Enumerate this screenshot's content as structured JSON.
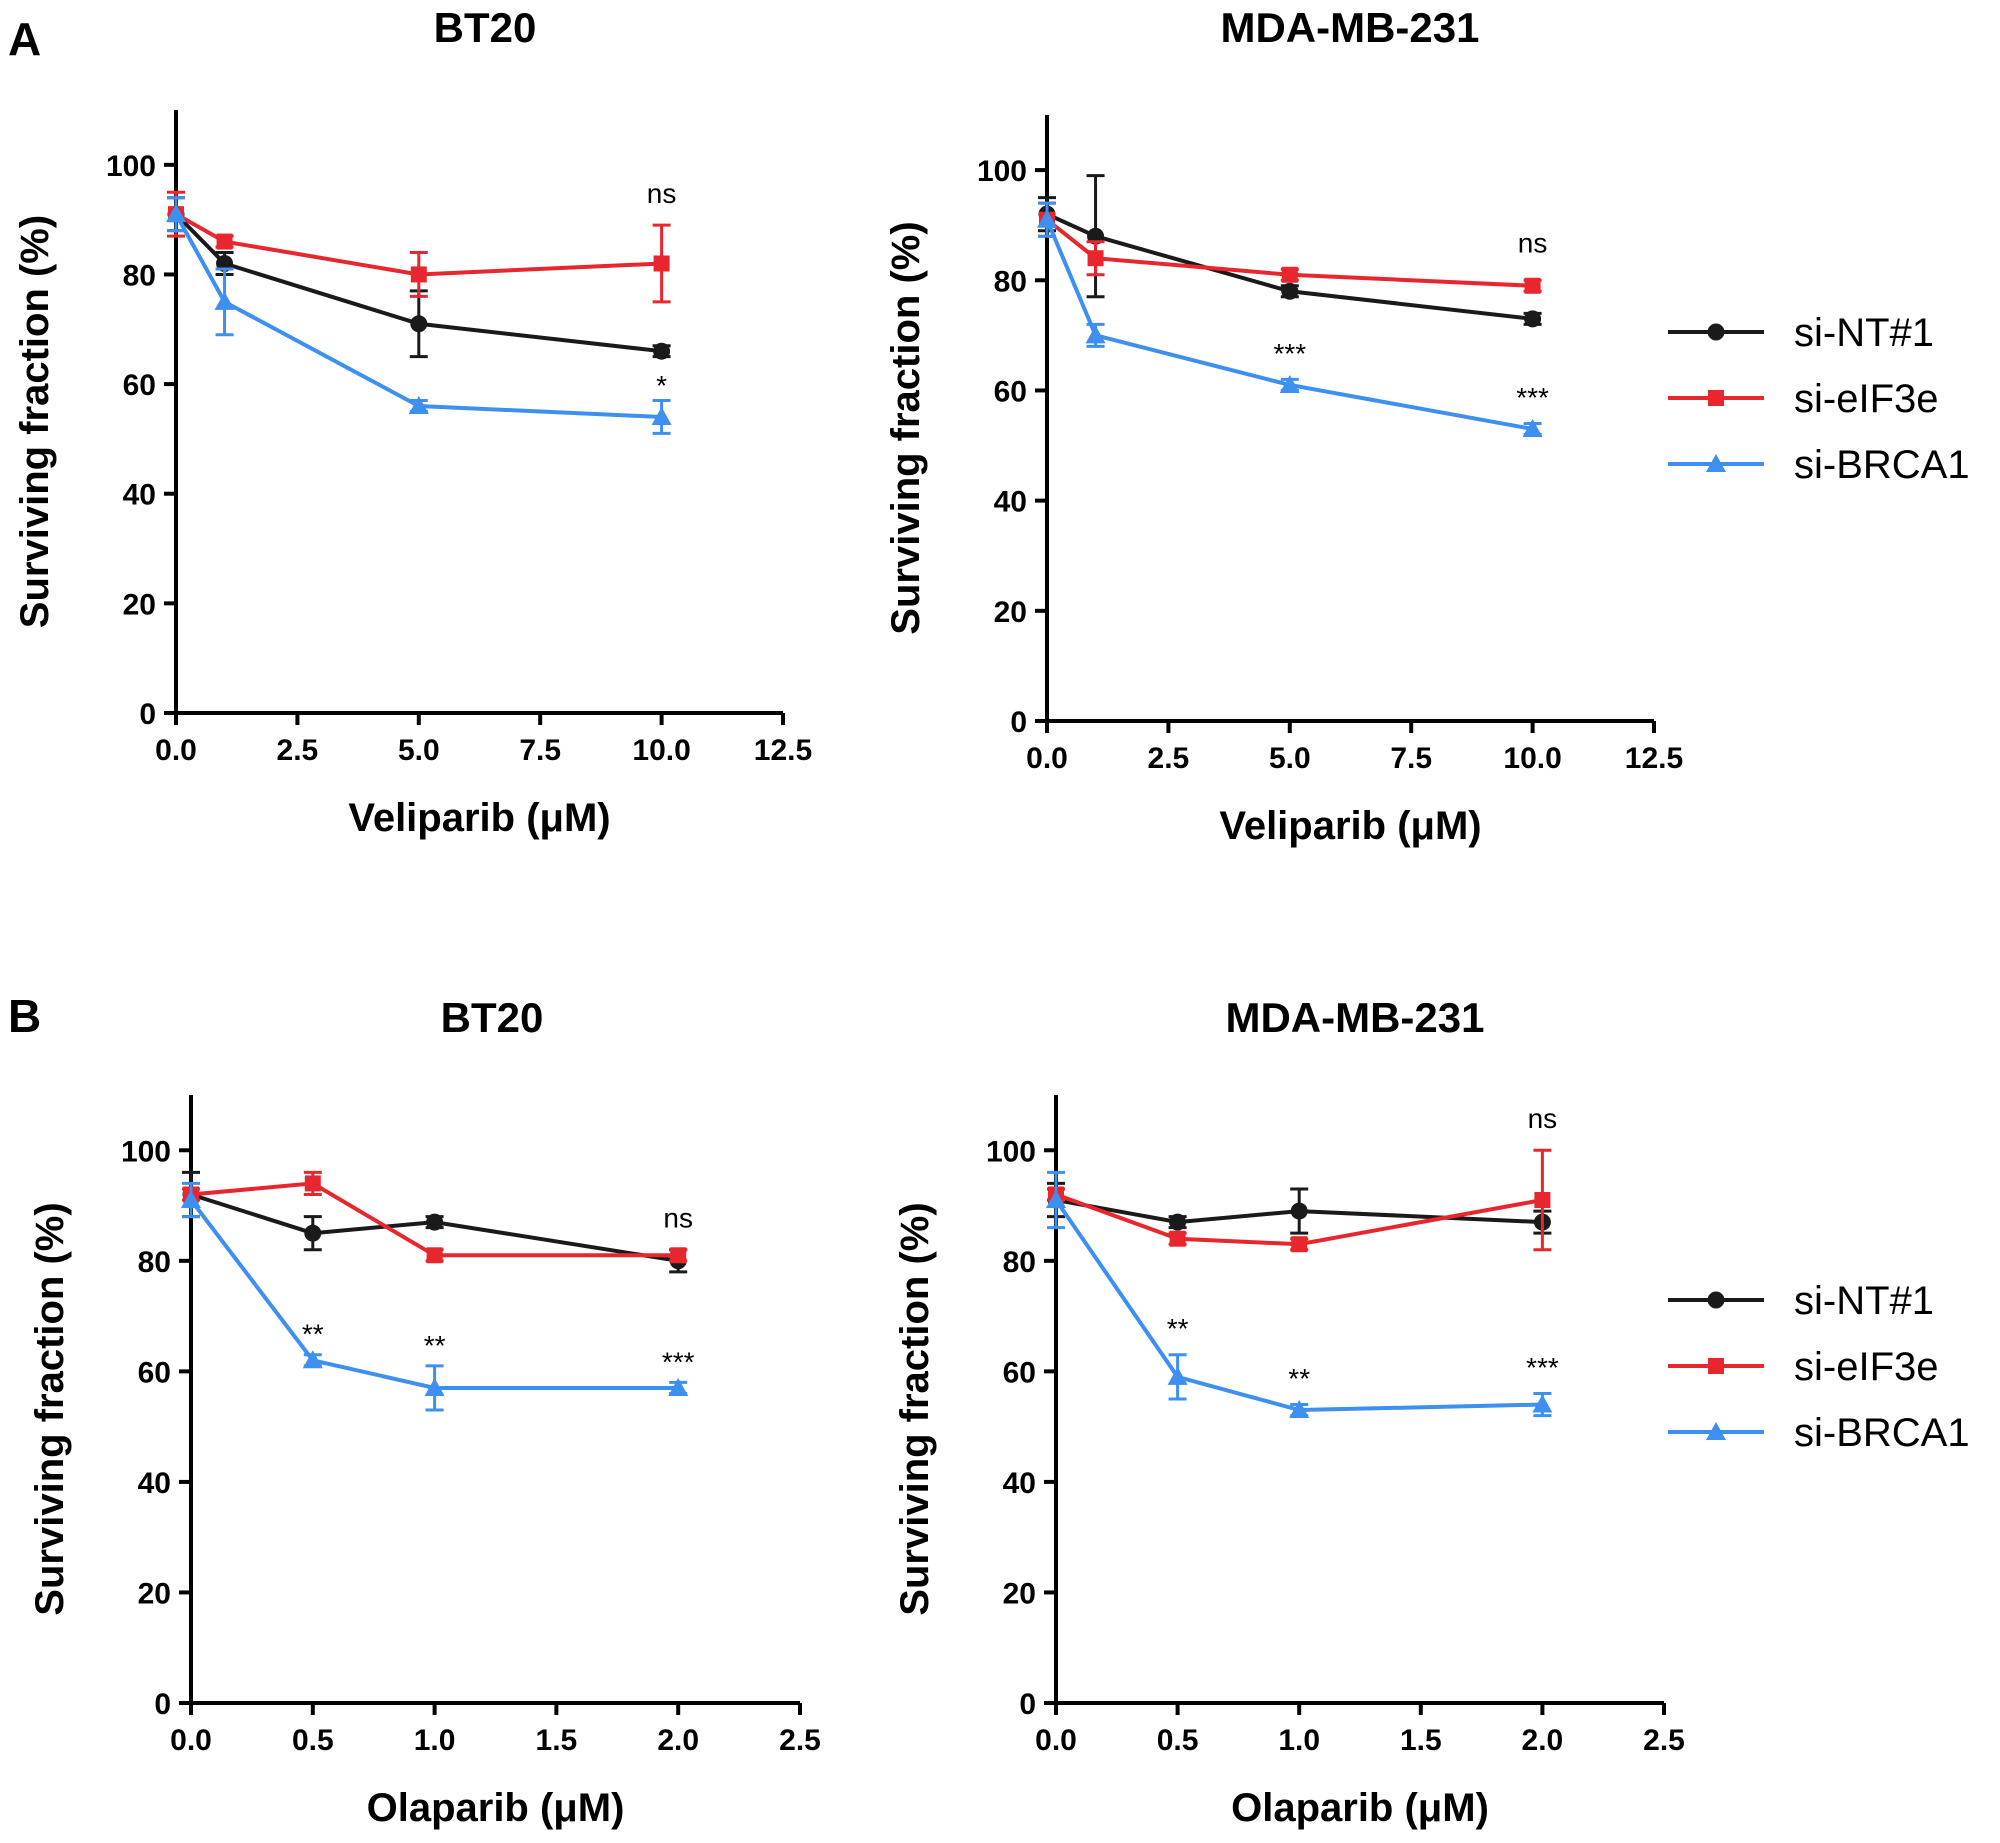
{
  "panels": [
    {
      "label": "A"
    },
    {
      "label": "B"
    }
  ],
  "colors": {
    "si-NT#1": "#1a1a1a",
    "si-eIF3e": "#e8262d",
    "si-BRCA1": "#3d8ff0"
  },
  "legend": [
    {
      "name": "si-NT#1",
      "marker": "circle"
    },
    {
      "name": "si-eIF3e",
      "marker": "square"
    },
    {
      "name": "si-BRCA1",
      "marker": "triangle"
    }
  ],
  "chart_data": [
    {
      "type": "line",
      "panel": "A",
      "title": "BT20",
      "xlabel": "Veliparib (μM)",
      "ylabel": "Surviving fraction (%)",
      "xlim": [
        0,
        12.5
      ],
      "ylim": [
        0,
        110
      ],
      "xticks": [
        "0.0",
        "2.5",
        "5.0",
        "7.5",
        "10.0",
        "12.5"
      ],
      "yticks": [
        "0",
        "20",
        "40",
        "60",
        "80",
        "100"
      ],
      "x": [
        0,
        1,
        5,
        10
      ],
      "series": [
        {
          "name": "si-NT#1",
          "values": [
            91,
            82,
            71,
            66
          ],
          "errors": [
            3,
            2,
            6,
            1
          ]
        },
        {
          "name": "si-eIF3e",
          "values": [
            91,
            86,
            80,
            82
          ],
          "errors": [
            4,
            1,
            4,
            7
          ]
        },
        {
          "name": "si-BRCA1",
          "values": [
            91,
            75,
            56,
            54
          ],
          "errors": [
            3,
            6,
            1,
            3
          ]
        }
      ],
      "annotations": [
        {
          "text": "ns",
          "x": 10,
          "y": 93
        },
        {
          "text": "*",
          "x": 10,
          "y": 58
        }
      ]
    },
    {
      "type": "line",
      "panel": "A",
      "title": "MDA-MB-231",
      "xlabel": "Veliparib (μM)",
      "ylabel": "Surviving fraction (%)",
      "xlim": [
        0,
        12.5
      ],
      "ylim": [
        0,
        110
      ],
      "xticks": [
        "0.0",
        "2.5",
        "5.0",
        "7.5",
        "10.0",
        "12.5"
      ],
      "yticks": [
        "0",
        "20",
        "40",
        "60",
        "80",
        "100"
      ],
      "x": [
        0,
        1,
        5,
        10
      ],
      "series": [
        {
          "name": "si-NT#1",
          "values": [
            92,
            88,
            78,
            73
          ],
          "errors": [
            3,
            11,
            1,
            1
          ]
        },
        {
          "name": "si-eIF3e",
          "values": [
            91,
            84,
            81,
            79
          ],
          "errors": [
            3,
            3,
            1,
            1
          ]
        },
        {
          "name": "si-BRCA1",
          "values": [
            91,
            70,
            61,
            53
          ],
          "errors": [
            3,
            2,
            1,
            1
          ]
        }
      ],
      "annotations": [
        {
          "text": "ns",
          "x": 10,
          "y": 85
        },
        {
          "text": "***",
          "x": 5,
          "y": 65
        },
        {
          "text": "***",
          "x": 10,
          "y": 57
        }
      ]
    },
    {
      "type": "line",
      "panel": "B",
      "title": "BT20",
      "xlabel": "Olaparib (μM)",
      "ylabel": "Surviving fraction (%)",
      "xlim": [
        0,
        2.5
      ],
      "ylim": [
        0,
        110
      ],
      "xticks": [
        "0.0",
        "0.5",
        "1.0",
        "1.5",
        "2.0",
        "2.5"
      ],
      "yticks": [
        "0",
        "20",
        "40",
        "60",
        "80",
        "100"
      ],
      "x": [
        0,
        0.5,
        1,
        2
      ],
      "series": [
        {
          "name": "si-NT#1",
          "values": [
            92,
            85,
            87,
            80
          ],
          "errors": [
            4,
            3,
            1,
            2
          ]
        },
        {
          "name": "si-eIF3e",
          "values": [
            92,
            94,
            81,
            81
          ],
          "errors": [
            1,
            2,
            1,
            1
          ]
        },
        {
          "name": "si-BRCA1",
          "values": [
            91,
            62,
            57,
            57
          ],
          "errors": [
            3,
            1,
            4,
            1
          ]
        }
      ],
      "annotations": [
        {
          "text": "ns",
          "x": 2,
          "y": 86
        },
        {
          "text": "**",
          "x": 0.5,
          "y": 65
        },
        {
          "text": "**",
          "x": 1,
          "y": 63
        },
        {
          "text": "***",
          "x": 2,
          "y": 60
        }
      ]
    },
    {
      "type": "line",
      "panel": "B",
      "title": "MDA-MB-231",
      "xlabel": "Olaparib (μM)",
      "ylabel": "Surviving fraction (%)",
      "xlim": [
        0,
        2.5
      ],
      "ylim": [
        0,
        110
      ],
      "xticks": [
        "0.0",
        "0.5",
        "1.0",
        "1.5",
        "2.0",
        "2.5"
      ],
      "yticks": [
        "0",
        "20",
        "40",
        "60",
        "80",
        "100"
      ],
      "x": [
        0,
        0.5,
        1,
        2
      ],
      "series": [
        {
          "name": "si-NT#1",
          "values": [
            91,
            87,
            89,
            87
          ],
          "errors": [
            3,
            1,
            4,
            2
          ]
        },
        {
          "name": "si-eIF3e",
          "values": [
            92,
            84,
            83,
            91
          ],
          "errors": [
            1,
            1,
            1,
            9
          ]
        },
        {
          "name": "si-BRCA1",
          "values": [
            91,
            59,
            53,
            54
          ],
          "errors": [
            5,
            4,
            1,
            2
          ]
        }
      ],
      "annotations": [
        {
          "text": "ns",
          "x": 2,
          "y": 104
        },
        {
          "text": "**",
          "x": 0.5,
          "y": 66
        },
        {
          "text": "**",
          "x": 1,
          "y": 57
        },
        {
          "text": "***",
          "x": 2,
          "y": 59
        }
      ]
    }
  ]
}
